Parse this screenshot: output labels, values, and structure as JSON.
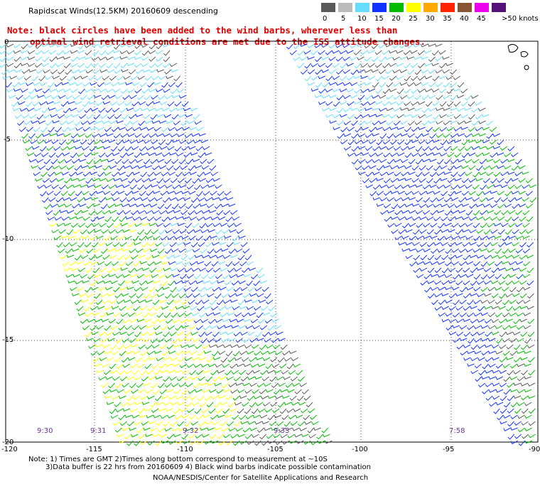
{
  "title": "Rapidscat Winds(12.5KM) 20160609 descending",
  "note": {
    "line1": "Note: black circles have been added to the wind barbs, wherever less than",
    "line2": "optimal wind retrieval conditions are met due to the ISS attitude changes."
  },
  "legend": {
    "labels": [
      "0",
      "5",
      "10",
      "15",
      "20",
      "25",
      "30",
      "35",
      "40",
      "45",
      ">50 knots"
    ],
    "colors": [
      "#5a5a5a",
      "#bbbbbb",
      "#66ddff",
      "#1133ff",
      "#00bb00",
      "#ffff00",
      "#ffaa00",
      "#ff2200",
      "#885533",
      "#ee00ee",
      "#551177"
    ]
  },
  "axes": {
    "x_ticks": [
      "-120",
      "-115",
      "-110",
      "-105",
      "-100",
      "-95",
      "-90"
    ],
    "y_ticks": [
      "0",
      "-5",
      "-10",
      "-15",
      "-20"
    ]
  },
  "pass_times": [
    "9:30",
    "9:31",
    "9:32",
    "9:33",
    "7:58"
  ],
  "footer": {
    "line1": "Note: 1) Times are GMT 2)Times along bottom correspond to measurement at ~10S",
    "line2": "3)Data buffer is 22 hrs from 20160609 4) Black wind barbs indicate possible contamination",
    "line3": "NOAA/NESDIS/Center for Satellite Applications and Research"
  }
}
